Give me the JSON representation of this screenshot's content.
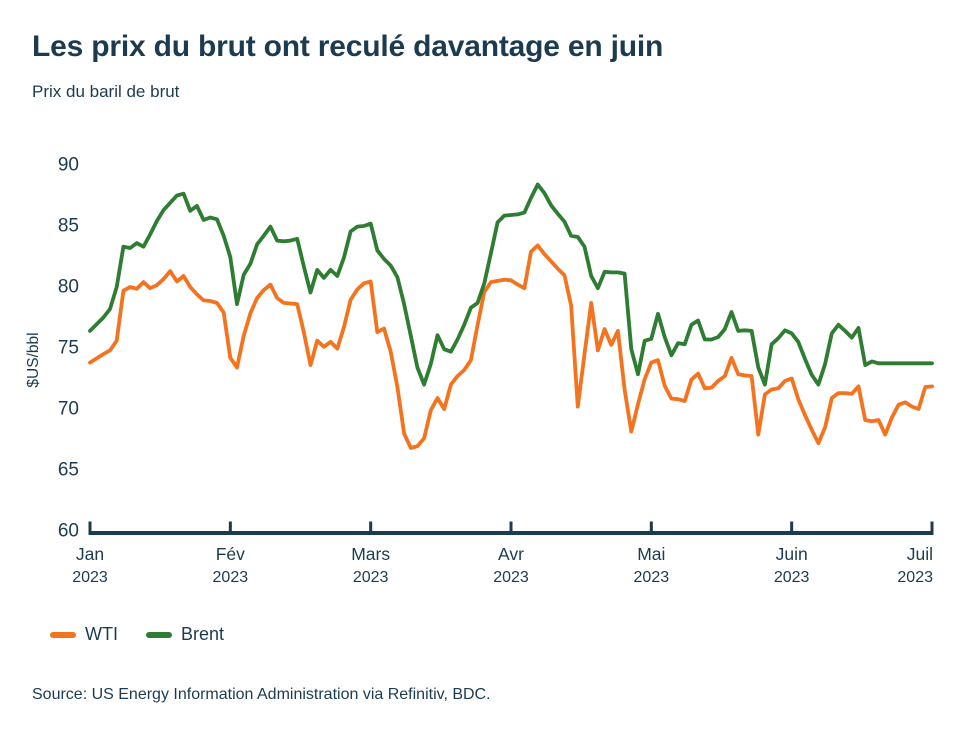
{
  "header": {
    "title": "Les prix du brut ont reculé davantage en juin",
    "subtitle": "Prix du baril de brut"
  },
  "legend": {
    "wti": "WTI",
    "brent": "Brent"
  },
  "footer": {
    "source": "Source: US Energy Information Administration via Refinitiv, BDC."
  },
  "colors": {
    "wti": "#F4731F",
    "brent": "#2E7D32",
    "text": "#1C3B50",
    "axis": "#1C3B50"
  },
  "chart_data": {
    "type": "line",
    "title": "Les prix du brut ont reculé davantage en juin",
    "subtitle": "Prix du baril de brut",
    "xlabel": "",
    "ylabel": "$US/bbl",
    "ylim": [
      60,
      90
    ],
    "yticks": [
      90,
      85,
      80,
      75,
      70,
      65,
      60
    ],
    "xticks": [
      {
        "month": "Jan",
        "year": "2023"
      },
      {
        "month": "Fév",
        "year": "2023"
      },
      {
        "month": "Mars",
        "year": "2023"
      },
      {
        "month": "Avr",
        "year": "2023"
      },
      {
        "month": "Mai",
        "year": "2023"
      },
      {
        "month": "Juin",
        "year": "2023"
      },
      {
        "month": "Juil",
        "year": "2023"
      }
    ],
    "grid": false,
    "legend_position": "bottom-left",
    "points_per_month": 21,
    "x_range": "2023-01 to 2023-07, ~daily points evenly spaced",
    "series": [
      {
        "name": "WTI",
        "color": "#F4731F",
        "values": [
          73.8,
          74.15,
          74.5,
          74.8,
          75.6,
          79.7,
          80.0,
          79.85,
          80.4,
          79.9,
          80.15,
          80.65,
          81.3,
          80.45,
          80.9,
          80.0,
          79.4,
          78.9,
          78.85,
          78.7,
          77.9,
          74.2,
          73.4,
          76.0,
          77.85,
          79.1,
          79.75,
          80.2,
          79.1,
          78.7,
          78.65,
          78.6,
          76.3,
          73.6,
          75.6,
          75.1,
          75.5,
          74.95,
          76.7,
          78.95,
          79.8,
          80.3,
          80.45,
          76.3,
          76.6,
          74.7,
          71.8,
          68.0,
          66.8,
          66.95,
          67.6,
          69.9,
          70.9,
          70.0,
          72.0,
          72.7,
          73.2,
          74.0,
          76.9,
          79.6,
          80.4,
          80.5,
          80.6,
          80.55,
          80.2,
          79.9,
          82.9,
          83.4,
          82.7,
          82.1,
          81.5,
          80.95,
          78.5,
          70.2,
          74.5,
          78.7,
          74.8,
          76.55,
          75.25,
          76.4,
          71.6,
          68.15,
          70.4,
          72.45,
          73.8,
          74.0,
          71.9,
          70.85,
          70.8,
          70.65,
          72.4,
          72.9,
          71.7,
          71.75,
          72.3,
          72.7,
          74.2,
          72.85,
          72.75,
          72.7,
          67.9,
          71.2,
          71.6,
          71.7,
          72.3,
          72.5,
          70.8,
          69.5,
          68.3,
          67.2,
          68.5,
          70.9,
          71.3,
          71.3,
          71.25,
          71.85,
          69.1,
          69.0,
          69.1,
          67.9,
          69.3,
          70.35,
          70.55,
          70.2,
          70.0,
          71.8,
          71.85
        ]
      },
      {
        "name": "Brent",
        "color": "#2E7D32",
        "values": [
          76.4,
          76.95,
          77.5,
          78.2,
          80.0,
          83.3,
          83.2,
          83.6,
          83.3,
          84.3,
          85.4,
          86.3,
          86.9,
          87.5,
          87.65,
          86.25,
          86.65,
          85.5,
          85.7,
          85.55,
          84.2,
          82.45,
          78.6,
          81.0,
          81.9,
          83.5,
          84.2,
          84.95,
          83.8,
          83.75,
          83.8,
          83.95,
          81.7,
          79.55,
          81.4,
          80.75,
          81.4,
          80.9,
          82.4,
          84.55,
          84.95,
          85.0,
          85.2,
          83.0,
          82.3,
          81.75,
          80.8,
          78.6,
          76.0,
          73.4,
          72.0,
          73.7,
          76.05,
          74.9,
          74.7,
          75.7,
          76.9,
          78.3,
          78.7,
          80.3,
          82.8,
          85.3,
          85.85,
          85.9,
          85.95,
          86.1,
          87.3,
          88.4,
          87.7,
          86.7,
          86.0,
          85.35,
          84.2,
          84.1,
          83.3,
          80.9,
          79.9,
          81.25,
          81.2,
          81.2,
          81.1,
          74.9,
          72.85,
          75.6,
          75.75,
          77.8,
          75.9,
          74.4,
          75.4,
          75.3,
          76.9,
          77.25,
          75.7,
          75.7,
          75.9,
          76.55,
          77.95,
          76.4,
          76.45,
          76.4,
          73.4,
          72.0,
          75.3,
          75.8,
          76.45,
          76.2,
          75.5,
          74.1,
          72.8,
          72.0,
          73.7,
          76.2,
          76.9,
          76.4,
          75.85,
          76.65,
          73.6,
          73.9,
          73.75,
          73.75,
          73.75,
          73.75,
          73.75,
          73.75,
          73.75,
          73.75,
          73.75
        ]
      }
    ]
  }
}
